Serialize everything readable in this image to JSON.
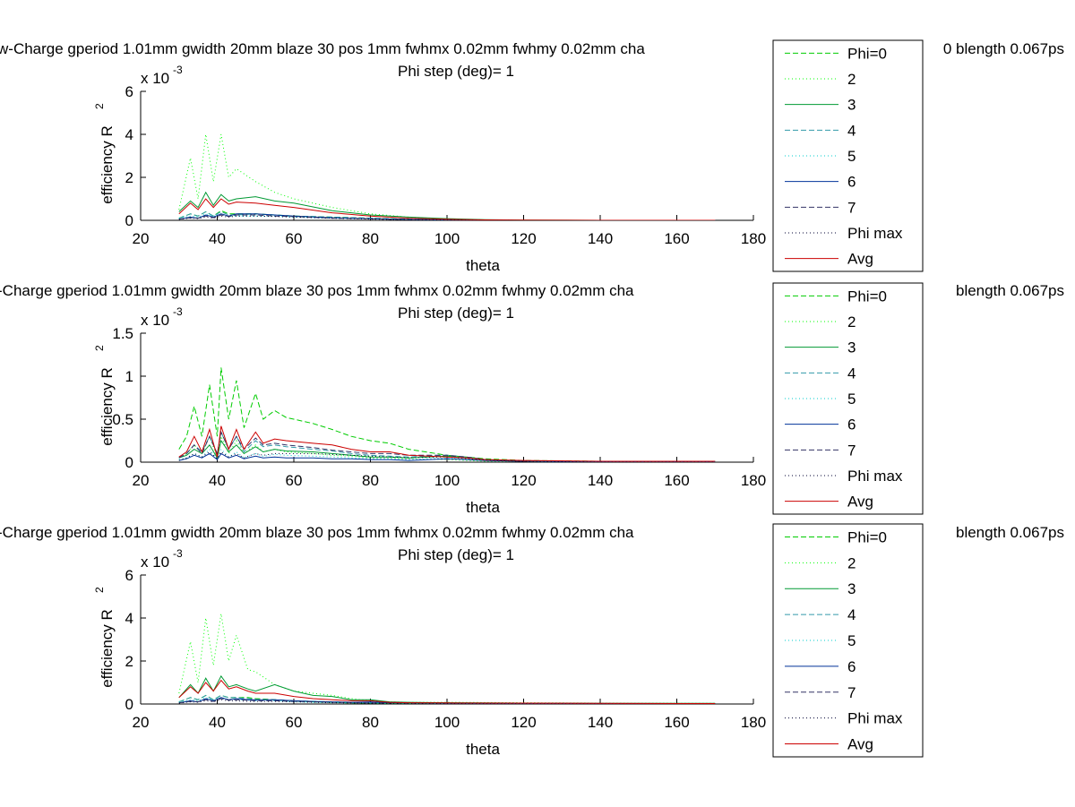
{
  "chart_data": [
    {
      "type": "line",
      "title_line1": "w-Charge gperiod 1.01mm gwidth 20mm blaze 30 pos 1mm fwhmx 0.02mm fwhmy 0.02mm cha",
      "title_line1_right": "0 blength 0.067ps",
      "title_line2": "Phi step (deg)= 1",
      "xlabel": "theta",
      "ylabel": "efficiency R",
      "ylabel_sup": "2",
      "exponent_label": "x 10",
      "exponent_sup": "-3",
      "xlim": [
        20,
        180
      ],
      "ylim": [
        0,
        6
      ],
      "xticks": [
        "20",
        "40",
        "60",
        "80",
        "100",
        "120",
        "140",
        "160",
        "180"
      ],
      "yticks": [
        "0",
        "2",
        "4",
        "6"
      ],
      "ytick_values": [
        0,
        2,
        4,
        6
      ],
      "x": [
        30,
        33,
        35,
        37,
        39,
        41,
        43,
        45,
        50,
        55,
        60,
        70,
        80,
        90,
        100,
        110,
        120,
        140,
        170
      ],
      "series": [
        {
          "name": "Phi=0",
          "color": "#00cc00",
          "style": "dashed",
          "values": [
            0.1,
            0.3,
            0.2,
            0.4,
            0.2,
            0.45,
            0.3,
            0.3,
            0.3,
            0.25,
            0.2,
            0.15,
            0.1,
            0.05,
            0.03,
            0.01,
            0,
            0,
            0
          ]
        },
        {
          "name": "2",
          "color": "#00ff00",
          "style": "dotted",
          "values": [
            0.5,
            2.9,
            1.0,
            4.0,
            1.8,
            4.0,
            2.0,
            2.4,
            1.8,
            1.3,
            1.0,
            0.6,
            0.3,
            0.15,
            0.05,
            0.02,
            0,
            0,
            0
          ]
        },
        {
          "name": "3",
          "color": "#009933",
          "style": "solid",
          "values": [
            0.4,
            0.9,
            0.6,
            1.3,
            0.7,
            1.2,
            0.9,
            1.0,
            1.1,
            0.9,
            0.8,
            0.45,
            0.25,
            0.15,
            0.08,
            0.03,
            0.01,
            0,
            0
          ]
        },
        {
          "name": "4",
          "color": "#3399aa",
          "style": "dashed",
          "values": [
            0.1,
            0.3,
            0.2,
            0.4,
            0.2,
            0.4,
            0.25,
            0.25,
            0.3,
            0.25,
            0.2,
            0.15,
            0.1,
            0.05,
            0.03,
            0.01,
            0,
            0,
            0
          ]
        },
        {
          "name": "5",
          "color": "#00cccc",
          "style": "dotted",
          "values": [
            0.1,
            0.2,
            0.15,
            0.3,
            0.2,
            0.3,
            0.2,
            0.2,
            0.2,
            0.2,
            0.15,
            0.1,
            0.08,
            0.04,
            0.02,
            0.01,
            0,
            0,
            0
          ]
        },
        {
          "name": "6",
          "color": "#003399",
          "style": "solid",
          "values": [
            0.05,
            0.15,
            0.1,
            0.25,
            0.15,
            0.3,
            0.2,
            0.3,
            0.3,
            0.25,
            0.2,
            0.12,
            0.08,
            0.04,
            0.02,
            0.01,
            0,
            0,
            0
          ]
        },
        {
          "name": "7",
          "color": "#333366",
          "style": "dashed",
          "values": [
            0.05,
            0.12,
            0.1,
            0.2,
            0.12,
            0.25,
            0.18,
            0.25,
            0.25,
            0.2,
            0.18,
            0.1,
            0.07,
            0.03,
            0.02,
            0.01,
            0,
            0,
            0
          ]
        },
        {
          "name": "Phi max",
          "color": "#000033",
          "style": "dotted",
          "values": [
            0.05,
            0.1,
            0.08,
            0.15,
            0.1,
            0.2,
            0.15,
            0.2,
            0.2,
            0.18,
            0.15,
            0.1,
            0.06,
            0.03,
            0.02,
            0.01,
            0,
            0,
            0
          ]
        },
        {
          "name": "Avg",
          "color": "#cc0000",
          "style": "solid",
          "values": [
            0.3,
            0.8,
            0.5,
            1.0,
            0.6,
            1.0,
            0.75,
            0.85,
            0.8,
            0.7,
            0.6,
            0.35,
            0.2,
            0.1,
            0.05,
            0.02,
            0.01,
            0,
            0
          ]
        }
      ],
      "legend_position": "right"
    },
    {
      "type": "line",
      "title_line1": "-Charge gperiod 1.01mm gwidth 20mm blaze 30 pos 1mm fwhmx 0.02mm fwhmy 0.02mm cha",
      "title_line1_right": "blength 0.067ps",
      "title_line2": "Phi step (deg)= 1",
      "xlabel": "theta",
      "ylabel": "efficiency R",
      "ylabel_sup": "2",
      "exponent_label": "x 10",
      "exponent_sup": "-3",
      "xlim": [
        20,
        180
      ],
      "ylim": [
        0,
        1.5
      ],
      "xticks": [
        "20",
        "40",
        "60",
        "80",
        "100",
        "120",
        "140",
        "160",
        "180"
      ],
      "yticks": [
        "0",
        "0.5",
        "1",
        "1.5"
      ],
      "ytick_values": [
        0,
        0.5,
        1,
        1.5
      ],
      "x": [
        30,
        32,
        34,
        36,
        38,
        40,
        41,
        43,
        45,
        47,
        50,
        52,
        55,
        58,
        65,
        70,
        75,
        80,
        85,
        90,
        100,
        105,
        110,
        120,
        140,
        150,
        170
      ],
      "series": [
        {
          "name": "Phi=0",
          "color": "#00cc00",
          "style": "dashed",
          "values": [
            0.15,
            0.3,
            0.65,
            0.3,
            0.9,
            0.3,
            1.1,
            0.5,
            0.95,
            0.4,
            0.8,
            0.5,
            0.6,
            0.52,
            0.45,
            0.38,
            0.3,
            0.25,
            0.22,
            0.15,
            0.08,
            0.06,
            0.04,
            0.02,
            0.01,
            0.01,
            0.01
          ]
        },
        {
          "name": "2",
          "color": "#00ff00",
          "style": "dotted",
          "values": [
            0.05,
            0.1,
            0.2,
            0.1,
            0.3,
            0.05,
            0.3,
            0.1,
            0.25,
            0.1,
            0.2,
            0.12,
            0.15,
            0.12,
            0.1,
            0.08,
            0.07,
            0.05,
            0.05,
            0.04,
            0.03,
            0.02,
            0.01,
            0.01,
            0,
            0,
            0
          ]
        },
        {
          "name": "3",
          "color": "#009933",
          "style": "solid",
          "values": [
            0.05,
            0.08,
            0.15,
            0.1,
            0.2,
            0.05,
            0.25,
            0.12,
            0.2,
            0.1,
            0.18,
            0.12,
            0.15,
            0.13,
            0.12,
            0.1,
            0.08,
            0.06,
            0.06,
            0.05,
            0.07,
            0.05,
            0.03,
            0.01,
            0,
            0,
            0
          ]
        },
        {
          "name": "4",
          "color": "#3399aa",
          "style": "dashed",
          "values": [
            0.05,
            0.1,
            0.2,
            0.12,
            0.3,
            0.1,
            0.35,
            0.15,
            0.3,
            0.12,
            0.25,
            0.18,
            0.2,
            0.18,
            0.15,
            0.13,
            0.1,
            0.08,
            0.07,
            0.06,
            0.08,
            0.06,
            0.03,
            0.01,
            0,
            0,
            0
          ]
        },
        {
          "name": "5",
          "color": "#00cccc",
          "style": "dotted",
          "values": [
            0.03,
            0.05,
            0.1,
            0.06,
            0.15,
            0.04,
            0.15,
            0.06,
            0.12,
            0.05,
            0.1,
            0.07,
            0.09,
            0.08,
            0.07,
            0.06,
            0.05,
            0.04,
            0.04,
            0.03,
            0.05,
            0.04,
            0.02,
            0.01,
            0,
            0,
            0
          ]
        },
        {
          "name": "6",
          "color": "#003399",
          "style": "solid",
          "values": [
            0.02,
            0.04,
            0.08,
            0.05,
            0.1,
            0.03,
            0.1,
            0.05,
            0.08,
            0.04,
            0.07,
            0.05,
            0.06,
            0.05,
            0.05,
            0.04,
            0.04,
            0.03,
            0.03,
            0.02,
            0.04,
            0.03,
            0.02,
            0.01,
            0,
            0,
            0
          ]
        },
        {
          "name": "7",
          "color": "#333366",
          "style": "dashed",
          "values": [
            0.05,
            0.1,
            0.2,
            0.1,
            0.3,
            0.1,
            0.35,
            0.15,
            0.3,
            0.15,
            0.28,
            0.2,
            0.22,
            0.2,
            0.17,
            0.14,
            0.12,
            0.1,
            0.1,
            0.08,
            0.08,
            0.06,
            0.03,
            0.01,
            0.01,
            0,
            0
          ]
        },
        {
          "name": "Phi max",
          "color": "#000033",
          "style": "dotted",
          "values": [
            0.02,
            0.05,
            0.1,
            0.06,
            0.12,
            0.04,
            0.12,
            0.06,
            0.1,
            0.05,
            0.1,
            0.08,
            0.1,
            0.1,
            0.1,
            0.09,
            0.08,
            0.07,
            0.06,
            0.05,
            0.06,
            0.04,
            0.02,
            0.01,
            0,
            0,
            0
          ]
        },
        {
          "name": "Avg",
          "color": "#cc0000",
          "style": "solid",
          "values": [
            0.06,
            0.12,
            0.3,
            0.12,
            0.38,
            0.06,
            0.42,
            0.15,
            0.38,
            0.15,
            0.35,
            0.22,
            0.27,
            0.25,
            0.22,
            0.2,
            0.15,
            0.12,
            0.12,
            0.08,
            0.06,
            0.05,
            0.03,
            0.02,
            0.01,
            0.01,
            0.01
          ]
        }
      ],
      "legend_position": "right"
    },
    {
      "type": "line",
      "title_line1": "-Charge gperiod 1.01mm gwidth 20mm blaze 30 pos 1mm fwhmx 0.02mm fwhmy 0.02mm cha",
      "title_line1_right": "blength 0.067ps",
      "title_line2": "Phi step (deg)= 1",
      "xlabel": "theta",
      "ylabel": "efficiency R",
      "ylabel_sup": "2",
      "exponent_label": "x 10",
      "exponent_sup": "-3",
      "xlim": [
        20,
        180
      ],
      "ylim": [
        0,
        6
      ],
      "xticks": [
        "20",
        "40",
        "60",
        "80",
        "100",
        "120",
        "140",
        "160",
        "180"
      ],
      "yticks": [
        "0",
        "2",
        "4",
        "6"
      ],
      "ytick_values": [
        0,
        2,
        4,
        6
      ],
      "x": [
        30,
        33,
        35,
        37,
        39,
        41,
        43,
        45,
        48,
        50,
        55,
        60,
        65,
        70,
        75,
        80,
        85,
        90,
        100,
        120,
        140,
        170
      ],
      "series": [
        {
          "name": "Phi=0",
          "color": "#00cc00",
          "style": "dashed",
          "values": [
            0.1,
            0.3,
            0.2,
            0.4,
            0.2,
            0.4,
            0.3,
            0.3,
            0.3,
            0.25,
            0.2,
            0.15,
            0.1,
            0.08,
            0.05,
            0.04,
            0.03,
            0.02,
            0.02,
            0.01,
            0.01,
            0.01
          ]
        },
        {
          "name": "2",
          "color": "#00ff00",
          "style": "dotted",
          "values": [
            0.5,
            2.9,
            1.0,
            4.0,
            1.8,
            4.2,
            2.0,
            3.2,
            1.6,
            1.5,
            0.9,
            0.6,
            0.5,
            0.4,
            0.25,
            0.15,
            0.1,
            0.08,
            0.08,
            0.06,
            0.04,
            0.03
          ]
        },
        {
          "name": "3",
          "color": "#009933",
          "style": "solid",
          "values": [
            0.3,
            0.9,
            0.5,
            1.2,
            0.6,
            1.3,
            0.8,
            0.9,
            0.7,
            0.6,
            0.9,
            0.6,
            0.4,
            0.35,
            0.2,
            0.2,
            0.1,
            0.08,
            0.06,
            0.04,
            0.03,
            0.03
          ]
        },
        {
          "name": "4",
          "color": "#3399aa",
          "style": "dashed",
          "values": [
            0.1,
            0.3,
            0.2,
            0.4,
            0.2,
            0.4,
            0.3,
            0.3,
            0.25,
            0.2,
            0.2,
            0.15,
            0.12,
            0.1,
            0.08,
            0.06,
            0.05,
            0.04,
            0.03,
            0.02,
            0.02,
            0.01
          ]
        },
        {
          "name": "5",
          "color": "#00cccc",
          "style": "dotted",
          "values": [
            0.08,
            0.2,
            0.15,
            0.3,
            0.18,
            0.3,
            0.2,
            0.2,
            0.18,
            0.15,
            0.15,
            0.1,
            0.08,
            0.06,
            0.05,
            0.04,
            0.03,
            0.03,
            0.02,
            0.02,
            0.01,
            0.01
          ]
        },
        {
          "name": "6",
          "color": "#003399",
          "style": "solid",
          "values": [
            0.05,
            0.15,
            0.1,
            0.25,
            0.15,
            0.3,
            0.2,
            0.25,
            0.2,
            0.2,
            0.2,
            0.15,
            0.12,
            0.1,
            0.08,
            0.1,
            0.05,
            0.04,
            0.03,
            0.02,
            0.02,
            0.01
          ]
        },
        {
          "name": "7",
          "color": "#333366",
          "style": "dashed",
          "values": [
            0.05,
            0.12,
            0.1,
            0.2,
            0.12,
            0.25,
            0.18,
            0.2,
            0.18,
            0.15,
            0.15,
            0.12,
            0.1,
            0.08,
            0.06,
            0.05,
            0.04,
            0.03,
            0.02,
            0.02,
            0.01,
            0.01
          ]
        },
        {
          "name": "Phi max",
          "color": "#000033",
          "style": "dotted",
          "values": [
            0.04,
            0.1,
            0.08,
            0.15,
            0.1,
            0.2,
            0.15,
            0.15,
            0.12,
            0.12,
            0.12,
            0.1,
            0.08,
            0.06,
            0.05,
            0.04,
            0.03,
            0.03,
            0.02,
            0.01,
            0.01,
            0.01
          ]
        },
        {
          "name": "Avg",
          "color": "#cc0000",
          "style": "solid",
          "values": [
            0.3,
            0.8,
            0.5,
            1.0,
            0.6,
            1.1,
            0.7,
            0.8,
            0.6,
            0.5,
            0.5,
            0.35,
            0.25,
            0.2,
            0.15,
            0.15,
            0.08,
            0.06,
            0.05,
            0.04,
            0.03,
            0.02
          ]
        }
      ],
      "legend_position": "right"
    }
  ]
}
